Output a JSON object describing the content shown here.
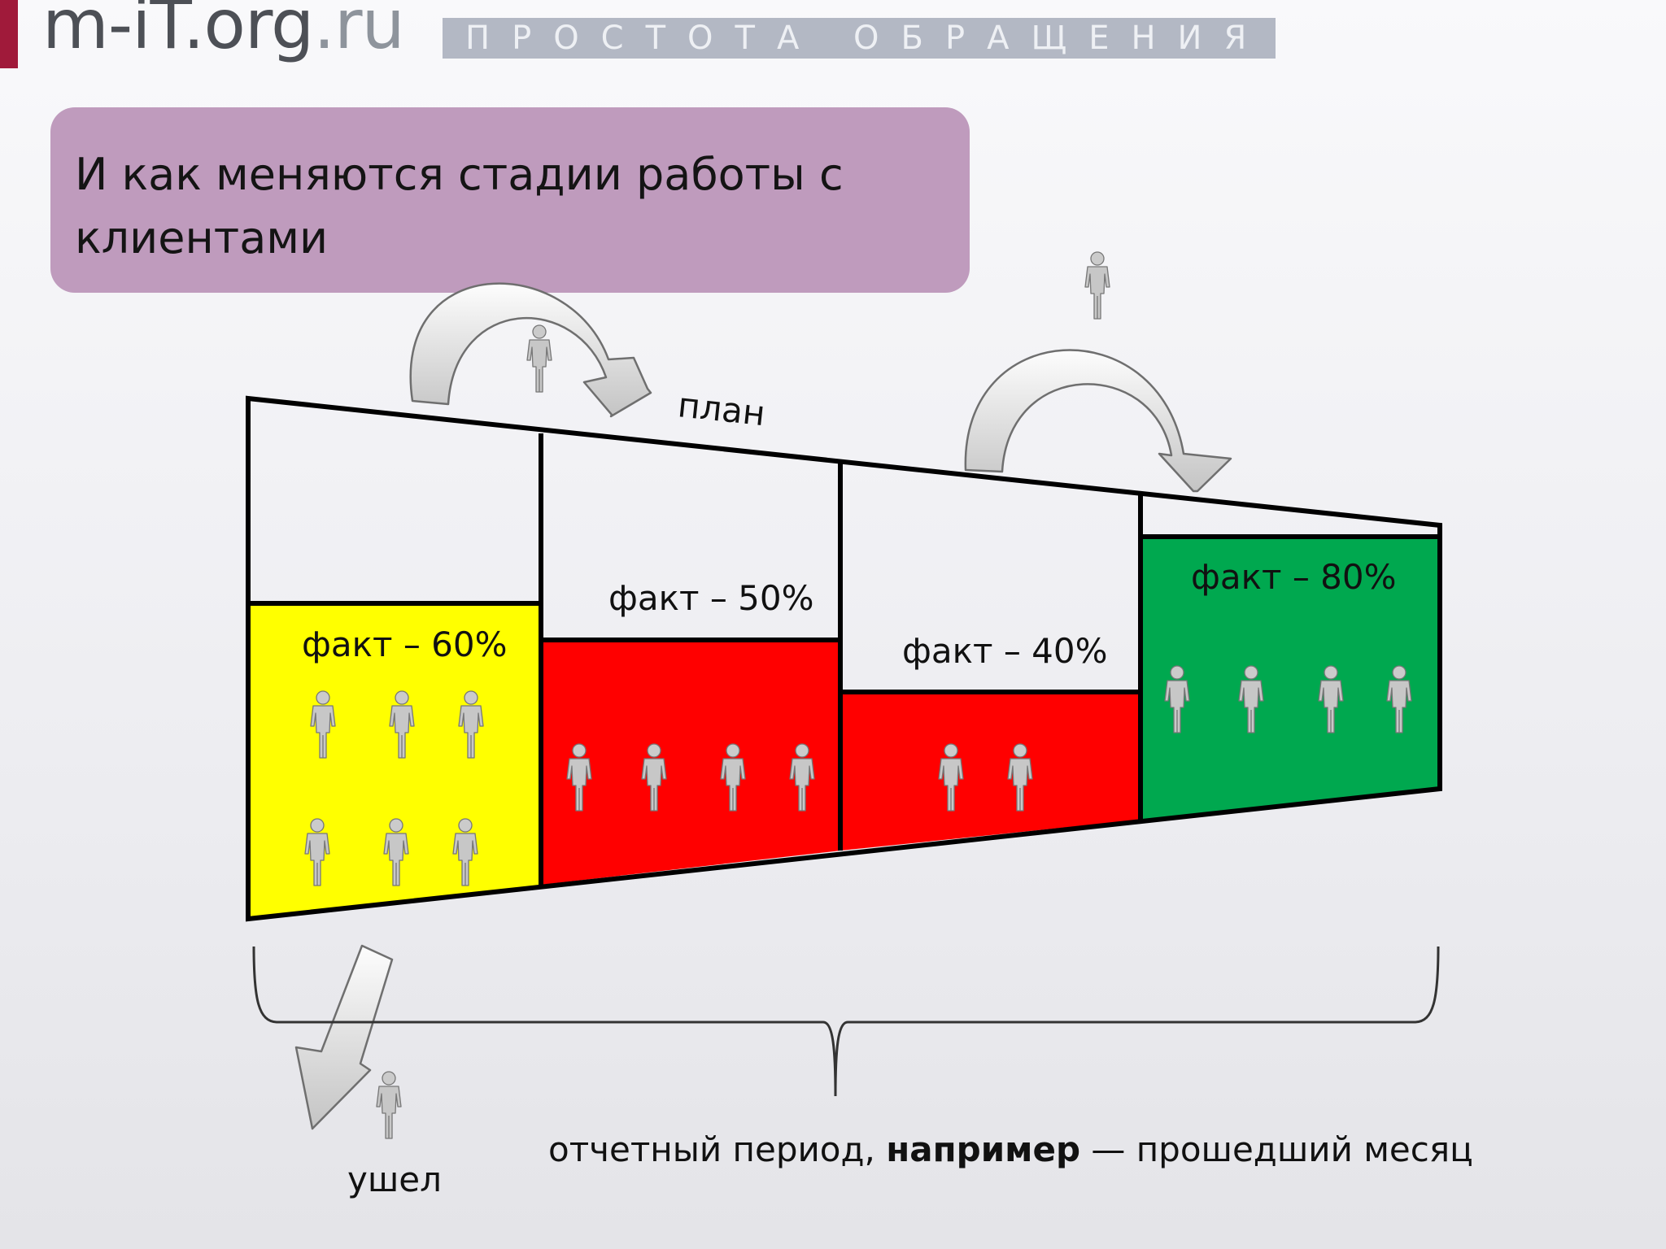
{
  "header": {
    "logo_main": "m-iT.org",
    "logo_tld": ".ru",
    "tagline": "ПРОСТОТА ОБРАЩЕНИЯ"
  },
  "title": "И как меняются стадии работы с клиентами",
  "diagram": {
    "plan_label": "план",
    "stages": [
      {
        "label": "факт – 60%",
        "percent": 60,
        "color": "#ffff00",
        "people_count": 6
      },
      {
        "label": "факт – 50%",
        "percent": 50,
        "color": "#ff0000",
        "people_count": 4
      },
      {
        "label": "факт – 40%",
        "percent": 40,
        "color": "#ff0000",
        "people_count": 2
      },
      {
        "label": "факт – 80%",
        "percent": 80,
        "color": "#00a84f",
        "people_count": 4
      }
    ],
    "left_label": "ушел",
    "period_text_pre": "отчетный период, ",
    "period_text_bold": "например",
    "period_text_post": " — прошедший месяц"
  }
}
